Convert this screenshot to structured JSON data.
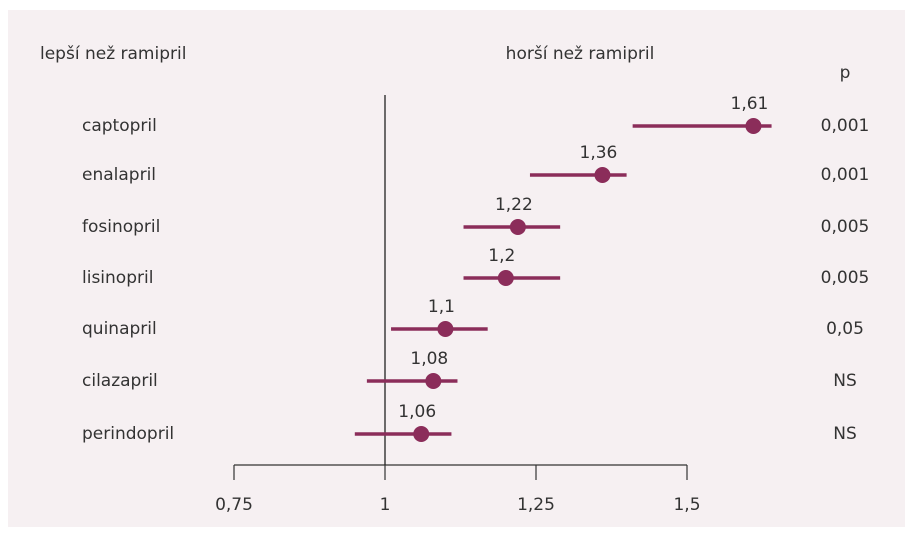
{
  "chart_data": {
    "type": "forest",
    "left_label": "lepší než ramipril",
    "right_label": "horší než ramipril",
    "p_header": "p",
    "categories": [
      "captopril",
      "enalapril",
      "fosinopril",
      "lisinopril",
      "quinapril",
      "cilazapril",
      "perindopril"
    ],
    "values": [
      1.61,
      1.36,
      1.22,
      1.2,
      1.1,
      1.08,
      1.06
    ],
    "value_labels": [
      "1,61",
      "1,36",
      "1,22",
      "1,2",
      "1,1",
      "1,08",
      "1,06"
    ],
    "ci_low": [
      1.41,
      1.24,
      1.13,
      1.13,
      1.01,
      0.97,
      0.95
    ],
    "ci_high": [
      1.64,
      1.4,
      1.29,
      1.29,
      1.17,
      1.12,
      1.11
    ],
    "p_values": [
      "0,001",
      "0,001",
      "0,005",
      "0,005",
      "0,05",
      "NS",
      "NS"
    ],
    "color": "#8b2d5a",
    "xlim": [
      0.75,
      1.5
    ],
    "xticks": [
      {
        "value": 0.75,
        "label": "0,75"
      },
      1,
      {
        "value": 1.25,
        "label": "1,25"
      },
      {
        "value": 1.5,
        "label": "1,5"
      }
    ]
  }
}
